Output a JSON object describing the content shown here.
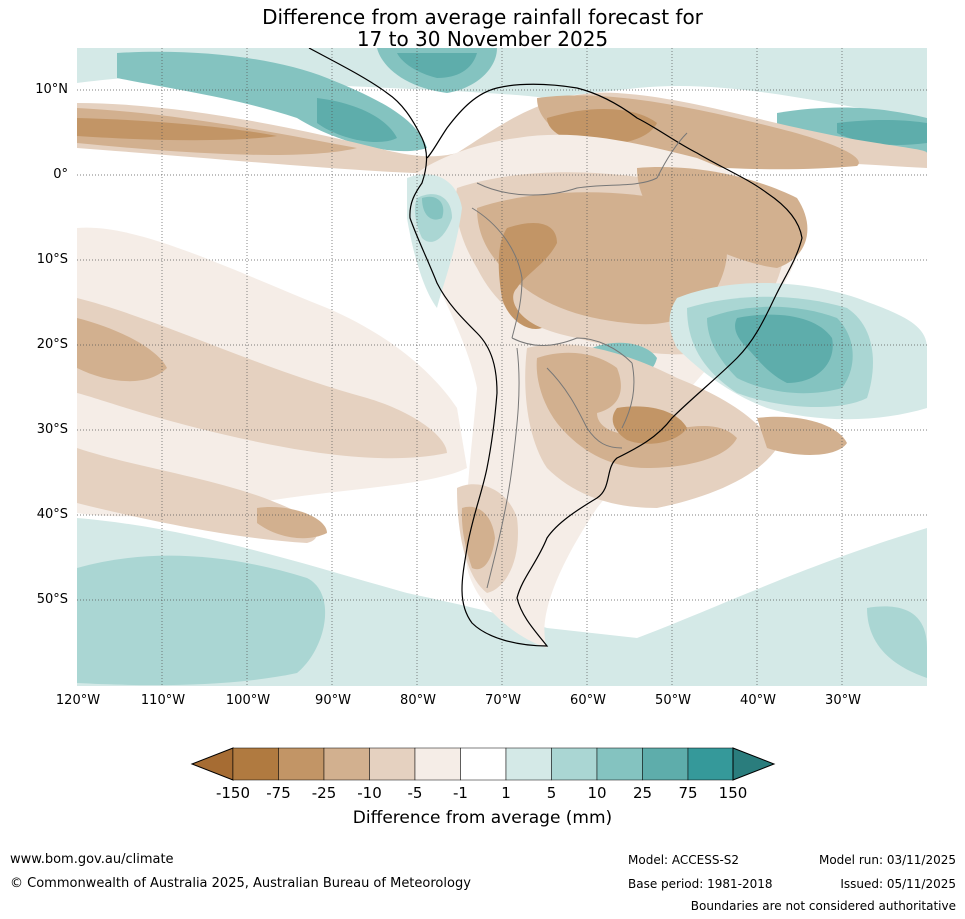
{
  "title": {
    "line1": "Difference from average rainfall forecast for",
    "line2": "17 to 30 November 2025"
  },
  "map": {
    "lat_labels": [
      "10°N",
      "0°",
      "10°S",
      "20°S",
      "30°S",
      "40°S",
      "50°S"
    ],
    "lon_labels": [
      "120°W",
      "110°W",
      "100°W",
      "90°W",
      "80°W",
      "70°W",
      "60°W",
      "50°W",
      "40°W",
      "30°W"
    ]
  },
  "colorbar": {
    "title": "Difference from average (mm)",
    "tick_labels": [
      "-150",
      "-75",
      "-25",
      "-10",
      "-5",
      "-1",
      "1",
      "5",
      "10",
      "25",
      "75",
      "150"
    ],
    "colors": [
      "#a66c33",
      "#b07a40",
      "#c29566",
      "#d2b08f",
      "#e5d1c0",
      "#f5ede7",
      "#ffffff",
      "#d4e9e7",
      "#aad6d3",
      "#84c3c0",
      "#5eadab",
      "#35999a",
      "#2a7d7d"
    ]
  },
  "footer": {
    "website": "www.bom.gov.au/climate",
    "copyright": "© Commonwealth of Australia 2025, Australian Bureau of Meteorology",
    "model": "Model: ACCESS-S2",
    "base_period": "Base period: 1981-2018",
    "model_run": "Model run: 03/11/2025",
    "issued": "Issued: 05/11/2025",
    "disclaimer": "Boundaries are not considered authoritative"
  }
}
